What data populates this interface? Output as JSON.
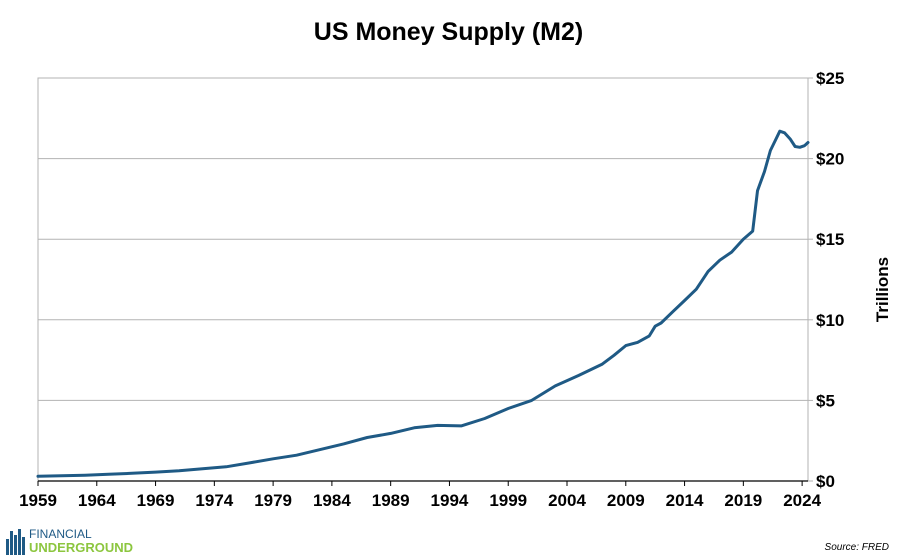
{
  "chart_data": {
    "type": "line",
    "title": "US Money Supply (M2)",
    "ylabel": "Trillions",
    "xlabel": "",
    "xlim": [
      1959,
      2024.5
    ],
    "ylim": [
      0,
      25
    ],
    "x_ticks": [
      "1959",
      "1964",
      "1969",
      "1974",
      "1979",
      "1984",
      "1989",
      "1994",
      "1999",
      "2004",
      "2009",
      "2014",
      "2019",
      "2024"
    ],
    "y_ticks": [
      "$0",
      "$5",
      "$10",
      "$15",
      "$20",
      "$25"
    ],
    "grid": "horizontal",
    "line_color": "#1f5a85",
    "series": [
      {
        "x": [
          1959,
          1961,
          1963,
          1965,
          1967,
          1969,
          1971,
          1973,
          1975,
          1977,
          1979,
          1981,
          1983,
          1985,
          1987,
          1989,
          1991,
          1993,
          1995,
          1997,
          1999,
          2001,
          2003,
          2005,
          2007,
          2008,
          2009,
          2010,
          2011,
          2011.5,
          2012,
          2013,
          2014,
          2015,
          2016,
          2017,
          2018,
          2019,
          2019.8,
          2020.2,
          2020.4,
          2020.8,
          2021.3,
          2021.7,
          2022.1,
          2022.5,
          2023.0,
          2023.4,
          2023.8,
          2024.2,
          2024.5
        ],
        "y": [
          0.29,
          0.32,
          0.36,
          0.42,
          0.48,
          0.55,
          0.63,
          0.76,
          0.88,
          1.12,
          1.38,
          1.6,
          1.95,
          2.3,
          2.7,
          2.95,
          3.3,
          3.45,
          3.42,
          3.88,
          4.5,
          5.0,
          5.9,
          6.55,
          7.25,
          7.8,
          8.4,
          8.6,
          9.0,
          9.6,
          9.8,
          10.5,
          11.2,
          11.9,
          13.0,
          13.7,
          14.2,
          15.0,
          15.5,
          18.0,
          18.4,
          19.2,
          20.5,
          21.1,
          21.7,
          21.6,
          21.2,
          20.75,
          20.7,
          20.8,
          21.0
        ]
      }
    ]
  },
  "source_note": "Source: FRED",
  "logo": {
    "line1": "FINANCIAL",
    "line2": "UNDERGROUND",
    "colors": {
      "top": "#1f5a85",
      "bottom": "#8cc63f"
    }
  }
}
